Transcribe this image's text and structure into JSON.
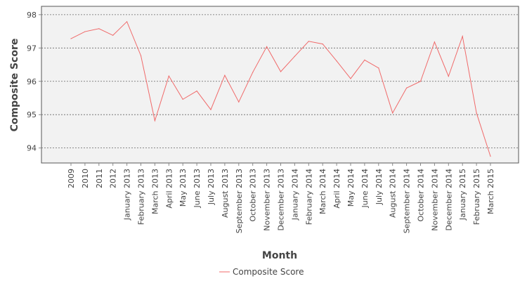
{
  "chart_data": {
    "type": "line",
    "title": "",
    "xlabel": "Month",
    "ylabel": "Composite Score",
    "categories": [
      "2009",
      "2010",
      "2011",
      "2012",
      "January 2013",
      "February 2013",
      "March 2013",
      "April 2013",
      "May 2013",
      "June 2013",
      "July 2013",
      "August 2013",
      "September 2013",
      "October 2013",
      "November 2013",
      "December 2013",
      "January 2014",
      "February 2014",
      "March 2014",
      "April 2014",
      "May 2014",
      "June 2014",
      "July 2014",
      "August 2014",
      "September 2014",
      "October 2014",
      "November 2014",
      "December 2014",
      "January 2015",
      "February 2015",
      "March 2015"
    ],
    "series": [
      {
        "name": "Composite Score",
        "color": "#f06a6a",
        "values": [
          97.28,
          97.49,
          97.58,
          97.38,
          97.79,
          96.77,
          94.82,
          96.16,
          95.46,
          95.71,
          95.15,
          96.18,
          95.38,
          96.27,
          97.04,
          96.29,
          96.75,
          97.2,
          97.12,
          96.61,
          96.08,
          96.64,
          96.4,
          95.05,
          95.8,
          96.0,
          97.18,
          96.15,
          97.35,
          95.05,
          93.75
        ]
      }
    ],
    "yticks": [
      94,
      95,
      96,
      97,
      98
    ],
    "ylim": [
      93.55,
      98.25
    ],
    "grid": true,
    "legend_position": "bottom-center"
  }
}
